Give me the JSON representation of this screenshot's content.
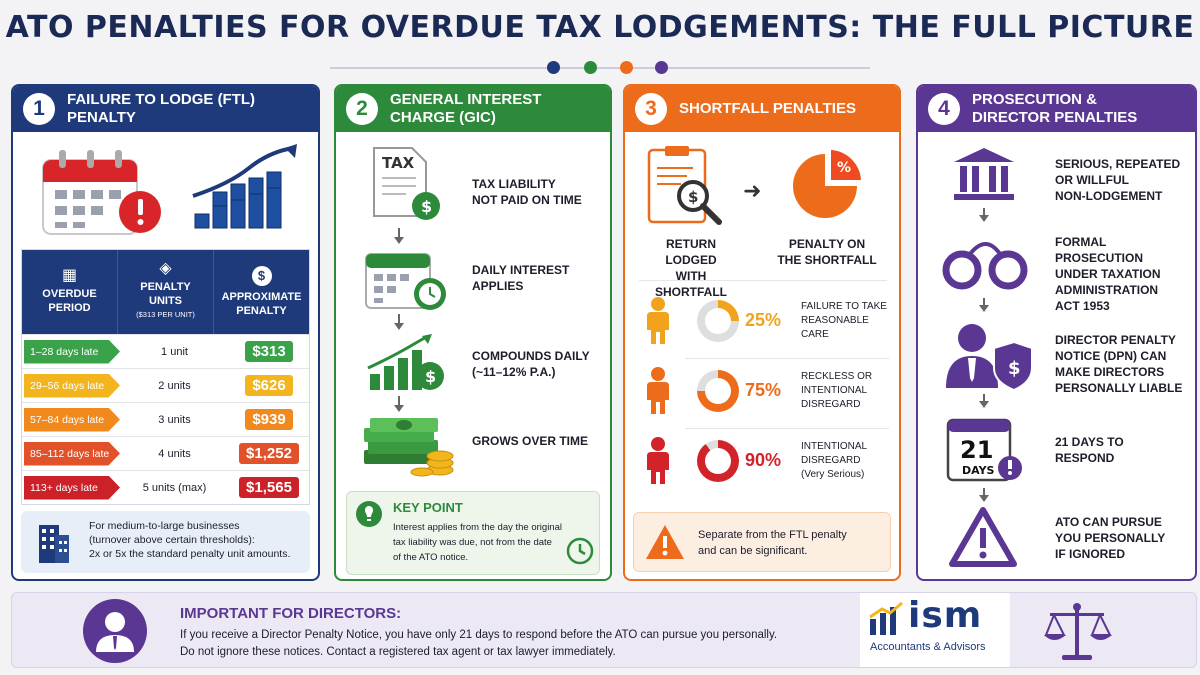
{
  "title": "ATO PENALTIES FOR OVERDUE TAX LODGEMENTS: THE FULL PICTURE",
  "colors": {
    "navy": "#1e3a7b",
    "green": "#2c8a3a",
    "orange": "#ed6c1c",
    "purple": "#5b3794"
  },
  "panel1": {
    "number": "1",
    "title": "FAILURE TO LODGE (FTL) PENALTY",
    "icons": [
      "calendar-icon",
      "warning-icon",
      "bar-growth-icon"
    ],
    "table": {
      "headers": {
        "period": "OVERDUE PERIOD",
        "units": "PENALTY UNITS",
        "units_sub": "($313 PER UNIT)",
        "penalty": "APPROXIMATE PENALTY"
      },
      "rows": [
        {
          "period": "1–28 days late",
          "units": "1 unit",
          "penalty": "$313",
          "color": "#3aa34a"
        },
        {
          "period": "29–56 days late",
          "units": "2 units",
          "penalty": "$626",
          "color": "#f2b51d"
        },
        {
          "period": "57–84 days late",
          "units": "3 units",
          "penalty": "$939",
          "color": "#f08a1e"
        },
        {
          "period": "85–112 days late",
          "units": "4 units",
          "penalty": "$1,252",
          "color": "#e2522a"
        },
        {
          "period": "113+ days late",
          "units": "5 units (max)",
          "penalty": "$1,565",
          "color": "#cc2128"
        }
      ]
    },
    "note": {
      "line1": "For medium-to-large businesses",
      "line2": "(turnover above certain thresholds):",
      "line3": "2x or 5x the standard penalty unit amounts."
    }
  },
  "panel2": {
    "number": "2",
    "title": "GENERAL INTEREST CHARGE (GIC)",
    "doc_label": "TAX",
    "steps": [
      {
        "line1": "TAX LIABILITY",
        "line2": "NOT PAID ON TIME"
      },
      {
        "line1": "DAILY INTEREST",
        "line2": "APPLIES"
      },
      {
        "line1": "COMPOUNDS DAILY",
        "line2": "(~11–12% P.A.)"
      },
      {
        "line1": "GROWS OVER TIME",
        "line2": ""
      }
    ],
    "keypoint": {
      "title": "KEY POINT",
      "line1": "Interest applies from the day the original",
      "line2": "tax liability was due, not from the date",
      "line3": "of the ATO notice."
    }
  },
  "panel3": {
    "number": "3",
    "title": "SHORTFALL PENALTIES",
    "left_label": {
      "line1": "RETURN LODGED",
      "line2": "WITH SHORTFALL"
    },
    "right_label": {
      "line1": "PENALTY ON",
      "line2": "THE SHORTFALL"
    },
    "pie_symbol": "%",
    "rates": [
      {
        "pct": "25%",
        "value": 25,
        "line1": "FAILURE TO TAKE",
        "line2": "REASONABLE CARE",
        "line3": "",
        "color": "#f2a31d"
      },
      {
        "pct": "75%",
        "value": 75,
        "line1": "RECKLESS OR",
        "line2": "INTENTIONAL",
        "line3": "DISREGARD",
        "color": "#ed6c1c"
      },
      {
        "pct": "90%",
        "value": 90,
        "line1": "INTENTIONAL",
        "line2": "DISREGARD",
        "line3": "(Very Serious)",
        "color": "#d2232a"
      }
    ],
    "note": {
      "line1": "Separate from the FTL penalty",
      "line2": "and can be significant."
    }
  },
  "panel4": {
    "number": "4",
    "title_line1": "PROSECUTION &",
    "title_line2": "DIRECTOR PENALTIES",
    "steps": [
      {
        "line1": "SERIOUS, REPEATED",
        "line2": "OR WILLFUL",
        "line3": "NON-LODGEMENT",
        "line4": ""
      },
      {
        "line1": "FORMAL PROSECUTION",
        "line2": "UNDER TAXATION",
        "line3": "ADMINISTRATION",
        "line4": "ACT 1953"
      },
      {
        "line1": "DIRECTOR PENALTY",
        "line2": "NOTICE (DPN) CAN",
        "line3": "MAKE DIRECTORS",
        "line4": "PERSONALLY LIABLE"
      },
      {
        "line1": "21 DAYS TO",
        "line2": "RESPOND",
        "line3": "",
        "line4": ""
      },
      {
        "line1": "ATO CAN PURSUE",
        "line2": "YOU PERSONALLY",
        "line3": "IF IGNORED",
        "line4": ""
      }
    ],
    "calendar": {
      "number": "21",
      "label": "DAYS"
    }
  },
  "bottom": {
    "title": "IMPORTANT FOR DIRECTORS:",
    "line1": "If you receive a Director Penalty Notice,  you have only 21 days to respond before the ATO can pursue you personally.",
    "line2": "Do not ignore these notices. Contact a registered tax agent or tax lawyer immediately.",
    "logo_name": "ism",
    "logo_sub": "Accountants & Advisors"
  }
}
